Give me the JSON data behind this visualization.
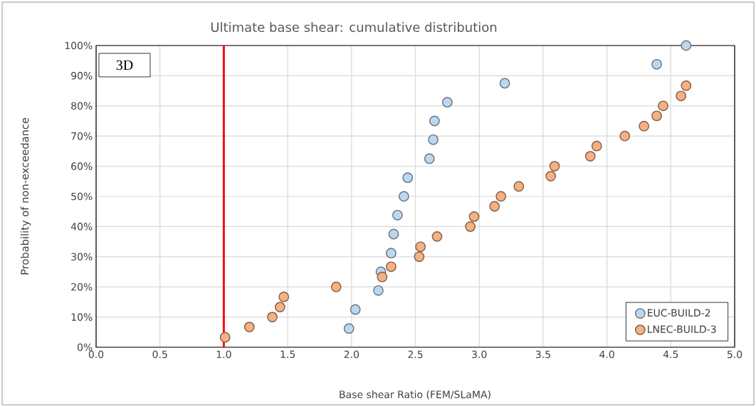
{
  "chart_data": {
    "type": "scatter",
    "title": "Ultimate base shear: cumulative distribution",
    "xlabel": "Base shear Ratio (FEM/SLaMA)",
    "ylabel": "Probability of non-exceedance",
    "annotations": [
      "3D"
    ],
    "series": [
      {
        "name": "EUC-BUILD-2",
        "color": "#bdd7ee",
        "x": [
          1.98,
          2.03,
          2.21,
          2.23,
          2.31,
          2.33,
          2.36,
          2.41,
          2.44,
          2.61,
          2.64,
          2.65,
          2.75,
          3.2,
          4.39,
          4.62
        ],
        "values": [
          6.2,
          12.5,
          18.8,
          25,
          31.2,
          37.5,
          43.8,
          50,
          56.2,
          62.5,
          68.8,
          75,
          81.2,
          87.5,
          93.8,
          100
        ]
      },
      {
        "name": "LNEC-BUILD-3",
        "color": "#f4b183",
        "x": [
          1.01,
          1.2,
          1.38,
          1.44,
          1.47,
          1.88,
          2.24,
          2.31,
          2.53,
          2.54,
          2.67,
          2.93,
          2.96,
          3.12,
          3.17,
          3.31,
          3.56,
          3.59,
          3.87,
          3.92,
          4.14,
          4.29,
          4.39,
          4.44,
          4.58,
          4.62
        ],
        "values": [
          3.3,
          6.7,
          10,
          13.3,
          16.7,
          20,
          23.3,
          26.7,
          30,
          33.3,
          36.7,
          40,
          43.3,
          46.7,
          50,
          53.3,
          56.7,
          60,
          63.3,
          66.7,
          70,
          73.3,
          76.7,
          80,
          83.3,
          86.7
        ]
      }
    ],
    "xlim": [
      0,
      5
    ],
    "ylim": [
      0,
      100
    ],
    "xticks": [
      {
        "value": 0,
        "label": "0.0"
      },
      {
        "value": 0.5,
        "label": "0.5"
      },
      {
        "value": 1,
        "label": "1.0"
      },
      {
        "value": 1.5,
        "label": "1.5"
      },
      {
        "value": 2,
        "label": "2.0"
      },
      {
        "value": 2.5,
        "label": "2.5"
      },
      {
        "value": 3,
        "label": "3.0"
      },
      {
        "value": 3.5,
        "label": "3.5"
      },
      {
        "value": 4,
        "label": "4.0"
      },
      {
        "value": 4.5,
        "label": "4.5"
      },
      {
        "value": 5,
        "label": "5.0"
      }
    ],
    "yticks": [
      {
        "value": 0,
        "label": "0%"
      },
      {
        "value": 10,
        "label": "10%"
      },
      {
        "value": 20,
        "label": "20%"
      },
      {
        "value": 30,
        "label": "30%"
      },
      {
        "value": 40,
        "label": "40%"
      },
      {
        "value": 50,
        "label": "50%"
      },
      {
        "value": 60,
        "label": "60%"
      },
      {
        "value": 70,
        "label": "70%"
      },
      {
        "value": 80,
        "label": "80%"
      },
      {
        "value": 90,
        "label": "90%"
      },
      {
        "value": 100,
        "label": "100%"
      }
    ],
    "ref_lines": [
      {
        "axis": "x",
        "value": 1,
        "color": "#ff0000"
      }
    ],
    "grid": true,
    "legend": "bottom right",
    "marker": "circle"
  }
}
